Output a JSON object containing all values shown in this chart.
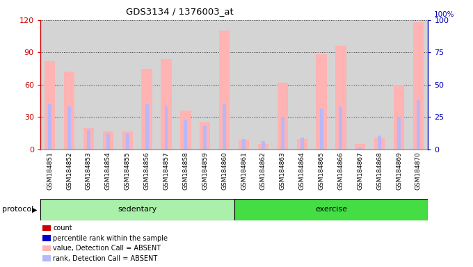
{
  "title": "GDS3134 / 1376003_at",
  "samples": [
    "GSM184851",
    "GSM184852",
    "GSM184853",
    "GSM184854",
    "GSM184855",
    "GSM184856",
    "GSM184857",
    "GSM184858",
    "GSM184859",
    "GSM184860",
    "GSM184861",
    "GSM184862",
    "GSM184863",
    "GSM184864",
    "GSM184865",
    "GSM184866",
    "GSM184867",
    "GSM184868",
    "GSM184869",
    "GSM184870"
  ],
  "value_absent": [
    82,
    72,
    20,
    17,
    17,
    75,
    84,
    36,
    25,
    110,
    9,
    5,
    62,
    10,
    88,
    96,
    5,
    11,
    60,
    118
  ],
  "rank_absent": [
    42,
    40,
    18,
    15,
    15,
    42,
    40,
    27,
    22,
    42,
    10,
    8,
    30,
    11,
    38,
    40,
    2,
    13,
    30,
    46
  ],
  "sedentary_count": 10,
  "exercise_count": 10,
  "ylim_left": [
    0,
    120
  ],
  "ylim_right": [
    0,
    100
  ],
  "yticks_left": [
    0,
    30,
    60,
    90,
    120
  ],
  "yticks_right": [
    0,
    25,
    50,
    75,
    100
  ],
  "bar_color_absent_value": "#ffb3b3",
  "bar_color_absent_rank": "#b8b8f8",
  "bar_color_count": "#cc0000",
  "bar_color_percentile": "#0000cc",
  "bg_color_plot": "#d4d4d4",
  "bg_color_sedentary": "#aaf0aa",
  "bg_color_exercise": "#44dd44",
  "left_axis_color": "#cc0000",
  "right_axis_color": "#0000bb",
  "protocol_label": "protocol",
  "sedentary_label": "sedentary",
  "exercise_label": "exercise",
  "legend_items": [
    {
      "color": "#cc0000",
      "label": "count"
    },
    {
      "color": "#0000cc",
      "label": "percentile rank within the sample"
    },
    {
      "color": "#ffb3b3",
      "label": "value, Detection Call = ABSENT"
    },
    {
      "color": "#b8b8f8",
      "label": "rank, Detection Call = ABSENT"
    }
  ]
}
